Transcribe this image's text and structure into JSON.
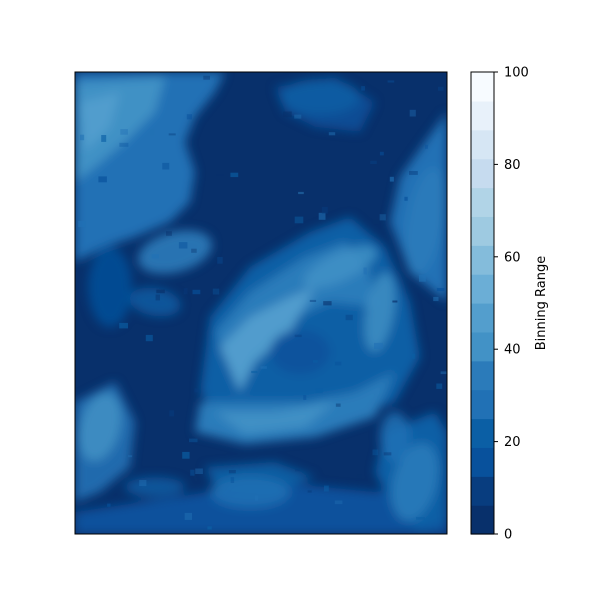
{
  "chart_data": {
    "type": "heatmap",
    "title": "",
    "xlabel": "",
    "ylabel": "",
    "x_ticks_visible": false,
    "y_ticks_visible": false,
    "colormap": "Blues_r",
    "colorbar": {
      "label": "Binning Range",
      "range": [
        0,
        100
      ],
      "levels": [
        0,
        6.67,
        13.33,
        20,
        26.67,
        33.33,
        40,
        46.67,
        53.33,
        60,
        66.67,
        73.33,
        80,
        86.67,
        93.33,
        100
      ],
      "ticks": [
        0,
        20,
        40,
        60,
        80,
        100
      ],
      "tick_labels": [
        "0",
        "20",
        "40",
        "60",
        "80",
        "100"
      ],
      "colors": [
        "#08306b",
        "#083d7f",
        "#08519c",
        "#0b5fa5",
        "#2171b5",
        "#2b7bba",
        "#4292c6",
        "#539ecd",
        "#6baed6",
        "#84bcdb",
        "#9ecae1",
        "#b1d4e7",
        "#c6dbef",
        "#d6e6f4",
        "#e8f1fa",
        "#f7fbff"
      ]
    }
  }
}
